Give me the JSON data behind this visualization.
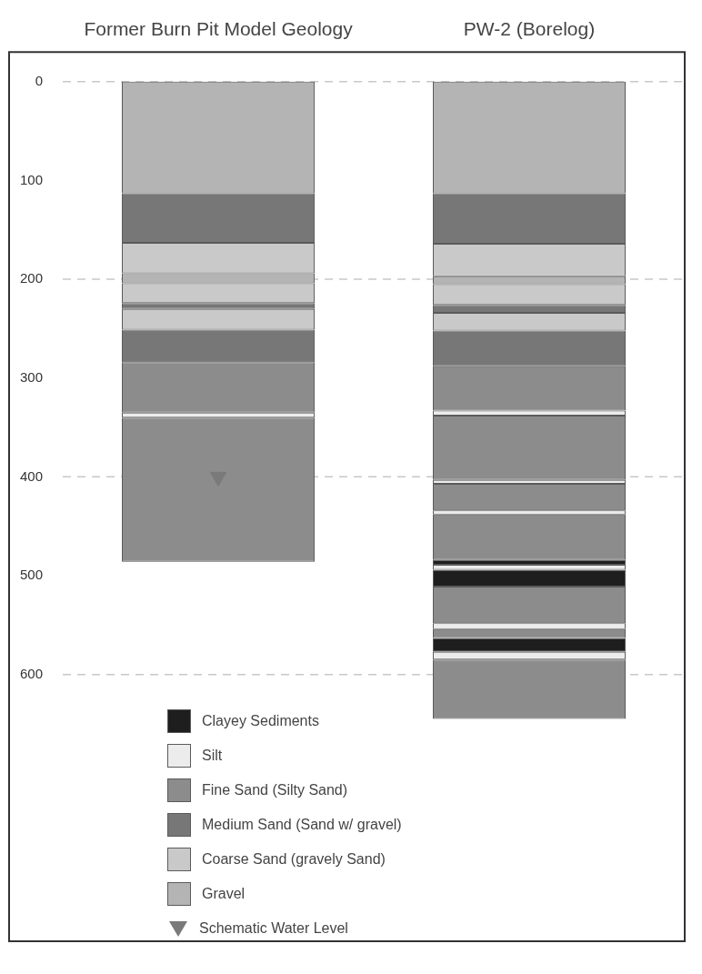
{
  "chart_data": {
    "type": "bar",
    "categories": [
      "Former Burn Pit Model Geology",
      "PW-2 (Borelog)"
    ],
    "ylim": [
      870,
      -30
    ],
    "yticks": [
      0,
      100,
      200,
      300,
      400,
      500,
      600
    ],
    "legend": "bottom left",
    "ref_lines": [
      {
        "axis": "y",
        "value": 0,
        "color": "#c8c8c8",
        "line_style": "dashed"
      },
      {
        "axis": "y",
        "value": 200,
        "color": "#c8c8c8",
        "line_style": "dashed"
      },
      {
        "axis": "y",
        "value": 400,
        "color": "#c8c8c8",
        "line_style": "dashed"
      },
      {
        "axis": "y",
        "value": 600,
        "color": "#c8c8c8",
        "line_style": "dashed"
      }
    ],
    "series": [
      {
        "name": "Clayey Sediments",
        "color": "#1e1e1e",
        "x": [
          "PW-2 (Borelog)",
          "PW-2 (Borelog)",
          "PW-2 (Borelog)"
        ],
        "base": [
          484,
          494,
          563
        ],
        "values": [
          5,
          17,
          14
        ]
      },
      {
        "name": "Silt",
        "color": "#ececec",
        "x": [
          "Former Burn Pit Model Geology",
          "PW-2 (Borelog)",
          "PW-2 (Borelog)",
          "PW-2 (Borelog)",
          "PW-2 (Borelog)",
          "PW-2 (Borelog)",
          "PW-2 (Borelog)"
        ],
        "base": [
          335,
          333,
          403,
          434,
          489,
          548,
          577
        ],
        "values": [
          5,
          5,
          4,
          4,
          5,
          6,
          8
        ]
      },
      {
        "name": "Fine Sand (Silty Sand)",
        "color": "#8c8c8c",
        "x": [
          "Former Burn Pit Model Geology",
          "Former Burn Pit Model Geology",
          "PW-2 (Borelog)",
          "PW-2 (Borelog)",
          "PW-2 (Borelog)",
          "PW-2 (Borelog)",
          "PW-2 (Borelog)",
          "PW-2 (Borelog)",
          "PW-2 (Borelog)"
        ],
        "base": [
          284,
          340,
          288,
          338,
          407,
          438,
          511,
          554,
          585
        ],
        "values": [
          51,
          146,
          45,
          65,
          27,
          46,
          37,
          9,
          60
        ]
      },
      {
        "name": "Medium Sand (Sand w/ gravel)",
        "color": "#777777",
        "x": [
          "Former Burn Pit Model Geology",
          "Former Burn Pit Model Geology",
          "Former Burn Pit Model Geology",
          "PW-2 (Borelog)",
          "PW-2 (Borelog)",
          "PW-2 (Borelog)"
        ],
        "base": [
          113,
          224,
          251,
          113,
          226,
          252
        ],
        "values": [
          50,
          6,
          33,
          51,
          8,
          36
        ]
      },
      {
        "name": "Coarse Sand (gravely Sand)",
        "color": "#c9c9c9",
        "x": [
          "Former Burn Pit Model Geology",
          "Former Burn Pit Model Geology",
          "Former Burn Pit Model Geology",
          "PW-2 (Borelog)",
          "PW-2 (Borelog)",
          "PW-2 (Borelog)"
        ],
        "base": [
          163,
          204,
          230,
          164,
          205,
          234
        ],
        "values": [
          31,
          20,
          21,
          33,
          21,
          18
        ]
      },
      {
        "name": "Gravel",
        "color": "#b4b4b4",
        "x": [
          "Former Burn Pit Model Geology",
          "Former Burn Pit Model Geology",
          "PW-2 (Borelog)",
          "PW-2 (Borelog)"
        ],
        "base": [
          0,
          194,
          0,
          197
        ],
        "values": [
          113,
          10,
          113,
          8
        ]
      },
      {
        "name": "Schematic Water Level",
        "type": "scatter",
        "marker": "triangle",
        "color": "#7a7a7a",
        "x": [
          "Former Burn Pit Model Geology"
        ],
        "values": [
          400
        ]
      }
    ]
  }
}
